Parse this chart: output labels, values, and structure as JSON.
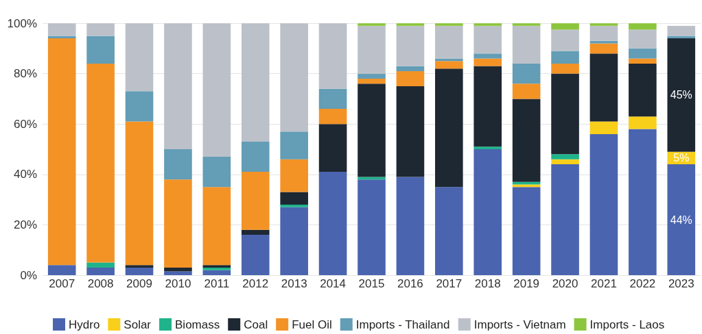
{
  "chart_data": {
    "type": "bar",
    "stacked": true,
    "categories": [
      "2007",
      "2008",
      "2009",
      "2010",
      "2011",
      "2012",
      "2013",
      "2014",
      "2015",
      "2016",
      "2017",
      "2018",
      "2019",
      "2020",
      "2021",
      "2022",
      "2023"
    ],
    "series": [
      {
        "name": "Hydro",
        "color": "#4a64b0",
        "values": [
          4,
          3,
          3,
          1.5,
          2,
          16,
          27,
          41,
          38,
          39,
          35,
          50,
          35,
          44,
          56,
          58,
          44
        ],
        "value_labels": [
          null,
          null,
          null,
          null,
          null,
          null,
          null,
          null,
          null,
          null,
          null,
          null,
          null,
          null,
          null,
          null,
          "44%"
        ]
      },
      {
        "name": "Solar",
        "color": "#f8cf1a",
        "values": [
          0,
          0,
          0,
          0,
          0,
          0,
          0,
          0,
          0,
          0,
          0,
          0,
          1,
          2,
          5,
          5,
          5
        ],
        "value_labels": [
          null,
          null,
          null,
          null,
          null,
          null,
          null,
          null,
          null,
          null,
          null,
          null,
          null,
          null,
          null,
          null,
          "5%"
        ]
      },
      {
        "name": "Biomass",
        "color": "#1fb38b",
        "values": [
          0,
          2,
          0,
          0,
          1,
          0,
          1,
          0,
          1,
          0,
          0,
          1,
          1,
          2,
          0,
          0,
          0
        ]
      },
      {
        "name": "Coal",
        "color": "#1e2832",
        "values": [
          0,
          0,
          1,
          1.5,
          1,
          2,
          5,
          19,
          37,
          36,
          47,
          32,
          33,
          32,
          27,
          21,
          45
        ],
        "value_labels": [
          null,
          null,
          null,
          null,
          null,
          null,
          null,
          null,
          null,
          null,
          null,
          null,
          null,
          null,
          null,
          null,
          "45%"
        ]
      },
      {
        "name": "Fuel Oil",
        "color": "#f39325",
        "values": [
          90,
          79,
          57,
          35,
          31,
          23,
          13,
          6,
          2,
          6,
          3,
          3,
          6,
          4,
          4,
          2,
          0
        ]
      },
      {
        "name": "Imports - Thailand",
        "color": "#639db6",
        "values": [
          1,
          11,
          12,
          12,
          12,
          12,
          11,
          8,
          2,
          2,
          1,
          2,
          8,
          5,
          1,
          4,
          1
        ]
      },
      {
        "name": "Imports - Vietnam",
        "color": "#bcc1c9",
        "values": [
          5,
          5,
          27,
          50,
          53,
          47,
          43,
          26,
          19,
          16,
          13,
          11,
          15,
          8.5,
          6,
          7.5,
          4
        ]
      },
      {
        "name": "Imports - Laos",
        "color": "#8cc63f",
        "values": [
          0,
          0,
          0,
          0,
          0,
          0,
          0,
          0,
          1,
          1,
          1,
          1,
          1,
          2.5,
          1,
          2.5,
          0
        ]
      }
    ],
    "ylim": [
      0,
      100
    ],
    "yticks": [
      {
        "value": 0,
        "label": "0%"
      },
      {
        "value": 20,
        "label": "20%"
      },
      {
        "value": 40,
        "label": "40%"
      },
      {
        "value": 60,
        "label": "60%"
      },
      {
        "value": 80,
        "label": "80%"
      },
      {
        "value": 100,
        "label": "100%"
      }
    ],
    "grid": "y",
    "legend": "bottom"
  }
}
